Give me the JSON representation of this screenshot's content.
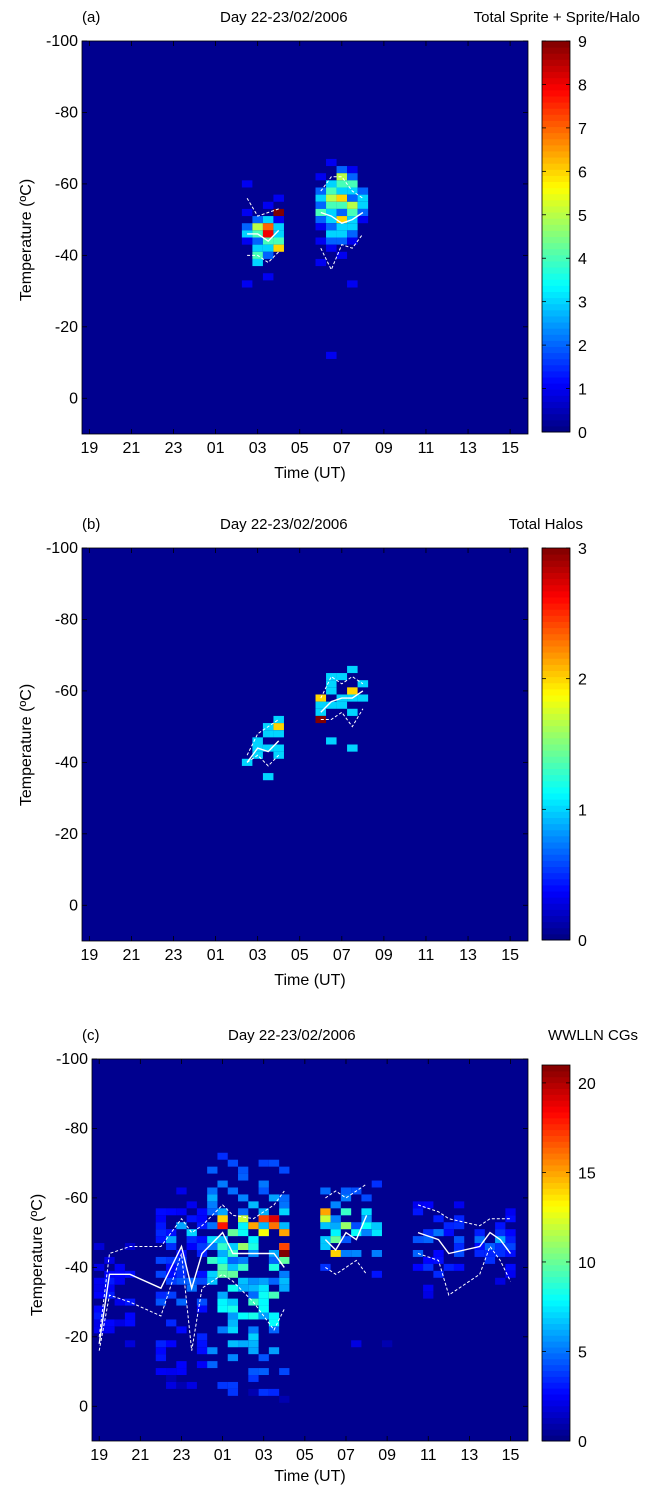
{
  "colors": {
    "background_bin": "#00008f",
    "overlay_lines": "#ffffff",
    "colormap": "jet"
  },
  "chart_data": [
    {
      "type": "heatmap",
      "panel_label": "(a)",
      "title": "Day 22-23/02/2006",
      "title_right": "Total Sprite + Sprite/Halo",
      "xlabel": "Time (UT)",
      "ylabel": "Temperature (ºC)",
      "xlim": [
        18.6,
        15.8
      ],
      "xlim_note_hours": [
        18.6,
        39.8
      ],
      "ylim": [
        -100,
        10
      ],
      "y_reversed": true,
      "x_ticks": [
        "19",
        "21",
        "23",
        "01",
        "03",
        "05",
        "07",
        "09",
        "11",
        "13",
        "15"
      ],
      "y_ticks": [
        "-100",
        "-80",
        "-60",
        "-40",
        "-20",
        "0"
      ],
      "colorbar": {
        "min": 0,
        "max": 9,
        "ticks": [
          "0",
          "1",
          "2",
          "3",
          "4",
          "5",
          "6",
          "7",
          "8",
          "9"
        ]
      },
      "background_value": 0,
      "cells": [
        [
          26.5,
          -60,
          1
        ],
        [
          26.5,
          -52,
          1
        ],
        [
          26.5,
          -48,
          2
        ],
        [
          26.5,
          -46,
          3
        ],
        [
          26.5,
          -44,
          1
        ],
        [
          26.5,
          -32,
          1
        ],
        [
          27.0,
          -50,
          2
        ],
        [
          27.0,
          -48,
          5
        ],
        [
          27.0,
          -46,
          4
        ],
        [
          27.0,
          -44,
          2
        ],
        [
          27.0,
          -42,
          3
        ],
        [
          27.0,
          -40,
          4
        ],
        [
          27.0,
          -38,
          3
        ],
        [
          27.5,
          -54,
          1
        ],
        [
          27.5,
          -50,
          3
        ],
        [
          27.5,
          -48,
          7
        ],
        [
          27.5,
          -46,
          8
        ],
        [
          27.5,
          -44,
          4
        ],
        [
          27.5,
          -42,
          3
        ],
        [
          27.5,
          -40,
          2
        ],
        [
          27.5,
          -34,
          1
        ],
        [
          28.0,
          -56,
          1
        ],
        [
          28.0,
          -52,
          9
        ],
        [
          28.0,
          -50,
          1
        ],
        [
          28.0,
          -48,
          3
        ],
        [
          28.0,
          -46,
          3
        ],
        [
          28.0,
          -44,
          4
        ],
        [
          28.0,
          -42,
          6
        ],
        [
          30.0,
          -62,
          1
        ],
        [
          30.0,
          -58,
          2
        ],
        [
          30.0,
          -56,
          3
        ],
        [
          30.0,
          -54,
          2
        ],
        [
          30.0,
          -52,
          4
        ],
        [
          30.0,
          -50,
          2
        ],
        [
          30.0,
          -48,
          1
        ],
        [
          30.0,
          -44,
          1
        ],
        [
          30.0,
          -38,
          1
        ],
        [
          30.5,
          -66,
          1
        ],
        [
          30.5,
          -60,
          3
        ],
        [
          30.5,
          -58,
          4
        ],
        [
          30.5,
          -56,
          5
        ],
        [
          30.5,
          -54,
          4
        ],
        [
          30.5,
          -52,
          3
        ],
        [
          30.5,
          -50,
          3
        ],
        [
          30.5,
          -48,
          2
        ],
        [
          30.5,
          -46,
          3
        ],
        [
          30.5,
          -44,
          2
        ],
        [
          30.5,
          -42,
          1
        ],
        [
          30.5,
          -12,
          1
        ],
        [
          31.0,
          -64,
          2
        ],
        [
          31.0,
          -62,
          5
        ],
        [
          31.0,
          -60,
          4
        ],
        [
          31.0,
          -58,
          3
        ],
        [
          31.0,
          -56,
          6
        ],
        [
          31.0,
          -54,
          4
        ],
        [
          31.0,
          -52,
          2
        ],
        [
          31.0,
          -50,
          6
        ],
        [
          31.0,
          -48,
          3
        ],
        [
          31.0,
          -46,
          3
        ],
        [
          31.0,
          -44,
          2
        ],
        [
          31.0,
          -40,
          1
        ],
        [
          31.5,
          -64,
          1
        ],
        [
          31.5,
          -62,
          2
        ],
        [
          31.5,
          -60,
          4
        ],
        [
          31.5,
          -58,
          3
        ],
        [
          31.5,
          -56,
          2
        ],
        [
          31.5,
          -54,
          5
        ],
        [
          31.5,
          -52,
          4
        ],
        [
          31.5,
          -50,
          3
        ],
        [
          31.5,
          -48,
          3
        ],
        [
          31.5,
          -46,
          2
        ],
        [
          31.5,
          -44,
          1
        ],
        [
          31.5,
          -32,
          1
        ],
        [
          32.0,
          -58,
          2
        ],
        [
          32.0,
          -56,
          3
        ],
        [
          32.0,
          -54,
          3
        ],
        [
          32.0,
          -52,
          2
        ],
        [
          32.0,
          -50,
          1
        ]
      ],
      "overlay_median": [
        [
          26.5,
          -46
        ],
        [
          27.0,
          -46
        ],
        [
          27.5,
          -44
        ],
        [
          28.0,
          -47
        ],
        [
          30.0,
          -52
        ],
        [
          30.5,
          -51
        ],
        [
          31.0,
          -49
        ],
        [
          31.5,
          -50
        ],
        [
          32.0,
          -52
        ]
      ],
      "overlay_upper": [
        [
          26.5,
          -56
        ],
        [
          27.0,
          -51
        ],
        [
          27.5,
          -52
        ],
        [
          28.0,
          -53
        ],
        [
          30.0,
          -58
        ],
        [
          30.5,
          -62
        ],
        [
          31.0,
          -62
        ],
        [
          31.5,
          -58
        ],
        [
          32.0,
          -56
        ]
      ],
      "overlay_lower": [
        [
          26.5,
          -40
        ],
        [
          27.0,
          -40
        ],
        [
          27.5,
          -38
        ],
        [
          28.0,
          -41
        ],
        [
          30.0,
          -42
        ],
        [
          30.5,
          -36
        ],
        [
          31.0,
          -43
        ],
        [
          31.5,
          -42
        ],
        [
          32.0,
          -46
        ]
      ]
    },
    {
      "type": "heatmap",
      "panel_label": "(b)",
      "title": "Day 22-23/02/2006",
      "title_right": "Total Halos",
      "xlabel": "Time (UT)",
      "ylabel": "Temperature (ºC)",
      "ylim": [
        -100,
        10
      ],
      "y_reversed": true,
      "x_ticks": [
        "19",
        "21",
        "23",
        "01",
        "03",
        "05",
        "07",
        "09",
        "11",
        "13",
        "15"
      ],
      "y_ticks": [
        "-100",
        "-80",
        "-60",
        "-40",
        "-20",
        "0"
      ],
      "colorbar": {
        "min": 0,
        "max": 3,
        "ticks": [
          "0",
          "1",
          "2",
          "3"
        ]
      },
      "background_value": 0,
      "cells": [
        [
          26.5,
          -40,
          1
        ],
        [
          27.0,
          -46,
          1
        ],
        [
          27.0,
          -44,
          1
        ],
        [
          27.0,
          -42,
          1
        ],
        [
          27.5,
          -50,
          1
        ],
        [
          27.5,
          -48,
          1
        ],
        [
          27.5,
          -44,
          1
        ],
        [
          27.5,
          -36,
          1
        ],
        [
          28.0,
          -50,
          2
        ],
        [
          28.0,
          -48,
          1
        ],
        [
          28.0,
          -44,
          1
        ],
        [
          28.0,
          -42,
          1
        ],
        [
          28.0,
          -52,
          1
        ],
        [
          30.0,
          -58,
          2
        ],
        [
          30.0,
          -56,
          1
        ],
        [
          30.0,
          -54,
          1
        ],
        [
          30.0,
          -52,
          3
        ],
        [
          30.5,
          -64,
          1
        ],
        [
          30.5,
          -62,
          1
        ],
        [
          30.5,
          -60,
          1
        ],
        [
          30.5,
          -56,
          1
        ],
        [
          30.5,
          -46,
          1
        ],
        [
          31.0,
          -64,
          1
        ],
        [
          31.0,
          -58,
          1
        ],
        [
          31.0,
          -56,
          1
        ],
        [
          31.5,
          -66,
          1
        ],
        [
          31.5,
          -60,
          2
        ],
        [
          31.5,
          -58,
          1
        ],
        [
          31.5,
          -54,
          1
        ],
        [
          31.5,
          -44,
          1
        ],
        [
          32.0,
          -62,
          1
        ],
        [
          32.0,
          -58,
          1
        ]
      ],
      "overlay_median": [
        [
          26.5,
          -40
        ],
        [
          27.0,
          -44
        ],
        [
          27.5,
          -43
        ],
        [
          28.0,
          -46
        ],
        [
          30.0,
          -54
        ],
        [
          30.5,
          -57
        ],
        [
          31.0,
          -58
        ],
        [
          31.5,
          -58
        ],
        [
          32.0,
          -60
        ]
      ],
      "overlay_upper": [
        [
          26.5,
          -42
        ],
        [
          27.0,
          -48
        ],
        [
          27.5,
          -50
        ],
        [
          28.0,
          -52
        ],
        [
          30.0,
          -58
        ],
        [
          30.5,
          -64
        ],
        [
          31.0,
          -62
        ],
        [
          31.5,
          -64
        ],
        [
          32.0,
          -62
        ]
      ],
      "overlay_lower": [
        [
          26.5,
          -40
        ],
        [
          27.0,
          -42
        ],
        [
          27.5,
          -39
        ],
        [
          28.0,
          -42
        ],
        [
          30.0,
          -52
        ],
        [
          30.5,
          -52
        ],
        [
          31.0,
          -54
        ],
        [
          31.5,
          -50
        ],
        [
          32.0,
          -55
        ]
      ]
    },
    {
      "type": "heatmap",
      "panel_label": "(c)",
      "title": "Day 22-23/02/2006",
      "title_right": "WWLLN CGs",
      "xlabel": "Time (UT)",
      "ylabel": "Temperature (ºC)",
      "ylim": [
        -100,
        10
      ],
      "y_reversed": true,
      "x_ticks": [
        "19",
        "21",
        "23",
        "01",
        "03",
        "05",
        "07",
        "09",
        "11",
        "13",
        "15"
      ],
      "y_ticks": [
        "-100",
        "-80",
        "-60",
        "-40",
        "-20",
        "0"
      ],
      "colorbar": {
        "min": 0,
        "max": 21,
        "ticks": [
          "0",
          "5",
          "10",
          "15",
          "20"
        ]
      },
      "background_value": 0,
      "clusters": [
        {
          "t0": 19.0,
          "t1": 20.5,
          "y_top": -46,
          "y_bot": -16,
          "intensity": 2
        },
        {
          "t0": 22.0,
          "t1": 24.0,
          "y_top": -62,
          "y_bot": -6,
          "intensity": 3
        },
        {
          "t0": 24.5,
          "t1": 28.0,
          "y_top": -72,
          "y_bot": -4,
          "intensity": 7
        },
        {
          "t0": 30.0,
          "t1": 32.5,
          "y_top": -66,
          "y_bot": -38,
          "intensity": 6
        },
        {
          "t0": 34.5,
          "t1": 36.5,
          "y_top": -60,
          "y_bot": -32,
          "intensity": 3
        },
        {
          "t0": 37.5,
          "t1": 39.0,
          "y_top": -58,
          "y_bot": -36,
          "intensity": 3
        }
      ],
      "hot_cells": [
        [
          25.0,
          -52,
          18
        ],
        [
          25.0,
          -54,
          14
        ],
        [
          25.5,
          -50,
          10
        ],
        [
          26.0,
          -54,
          12
        ],
        [
          26.5,
          -52,
          15
        ],
        [
          27.0,
          -54,
          17
        ],
        [
          27.0,
          -50,
          13
        ],
        [
          27.5,
          -54,
          19
        ],
        [
          27.5,
          -52,
          16
        ],
        [
          28.0,
          -50,
          15
        ],
        [
          28.0,
          -46,
          17
        ],
        [
          28.0,
          -44,
          21
        ],
        [
          26.0,
          -46,
          11
        ],
        [
          25.5,
          -44,
          9
        ],
        [
          30.0,
          -56,
          15
        ],
        [
          30.0,
          -54,
          12
        ],
        [
          30.5,
          -48,
          10
        ],
        [
          30.5,
          -44,
          14
        ],
        [
          31.0,
          -52,
          11
        ],
        [
          31.0,
          -56,
          9
        ],
        [
          23.5,
          -50,
          7
        ],
        [
          23.0,
          -52,
          6
        ],
        [
          22.5,
          -48,
          6
        ],
        [
          38.5,
          -48,
          6
        ],
        [
          35.5,
          -50,
          5
        ]
      ],
      "outlier_cells": [
        [
          31.5,
          -18,
          2
        ],
        [
          33.0,
          -18,
          1
        ],
        [
          22.5,
          -8,
          1
        ],
        [
          23.0,
          -6,
          1
        ],
        [
          26.5,
          -4,
          1
        ],
        [
          28.0,
          -2,
          1
        ]
      ],
      "overlay_median": [
        [
          19.0,
          -18
        ],
        [
          19.5,
          -38
        ],
        [
          20.5,
          -38
        ],
        [
          22.0,
          -34
        ],
        [
          23.0,
          -46
        ],
        [
          23.5,
          -34
        ],
        [
          24.0,
          -44
        ],
        [
          25.0,
          -50
        ],
        [
          25.5,
          -44
        ],
        [
          26.5,
          -44
        ],
        [
          27.5,
          -44
        ],
        [
          28.0,
          -40
        ],
        [
          30.0,
          -48
        ],
        [
          30.5,
          -45
        ],
        [
          31.0,
          -50
        ],
        [
          31.5,
          -48
        ],
        [
          32.0,
          -55
        ],
        [
          34.5,
          -50
        ],
        [
          35.5,
          -48
        ],
        [
          36.0,
          -44
        ],
        [
          37.5,
          -46
        ],
        [
          38.0,
          -50
        ],
        [
          38.5,
          -48
        ],
        [
          39.0,
          -44
        ]
      ],
      "overlay_upper": [
        [
          19.0,
          -20
        ],
        [
          19.5,
          -44
        ],
        [
          20.5,
          -46
        ],
        [
          22.0,
          -46
        ],
        [
          23.0,
          -54
        ],
        [
          23.5,
          -50
        ],
        [
          24.0,
          -52
        ],
        [
          25.0,
          -58
        ],
        [
          25.5,
          -55
        ],
        [
          26.5,
          -54
        ],
        [
          27.5,
          -58
        ],
        [
          28.0,
          -62
        ],
        [
          30.0,
          -60
        ],
        [
          30.5,
          -62
        ],
        [
          31.0,
          -60
        ],
        [
          31.5,
          -62
        ],
        [
          32.0,
          -64
        ],
        [
          34.5,
          -58
        ],
        [
          35.5,
          -56
        ],
        [
          36.0,
          -54
        ],
        [
          37.5,
          -52
        ],
        [
          38.0,
          -54
        ],
        [
          38.5,
          -54
        ],
        [
          39.0,
          -54
        ]
      ],
      "overlay_lower": [
        [
          19.0,
          -16
        ],
        [
          19.5,
          -32
        ],
        [
          20.5,
          -30
        ],
        [
          22.0,
          -26
        ],
        [
          23.0,
          -44
        ],
        [
          23.5,
          -16
        ],
        [
          24.0,
          -34
        ],
        [
          25.0,
          -38
        ],
        [
          25.5,
          -36
        ],
        [
          26.5,
          -30
        ],
        [
          27.5,
          -22
        ],
        [
          28.0,
          -28
        ],
        [
          30.0,
          -40
        ],
        [
          30.5,
          -38
        ],
        [
          31.0,
          -40
        ],
        [
          31.5,
          -42
        ],
        [
          32.0,
          -38
        ],
        [
          34.5,
          -44
        ],
        [
          35.5,
          -42
        ],
        [
          36.0,
          -32
        ],
        [
          37.5,
          -38
        ],
        [
          38.0,
          -46
        ],
        [
          38.5,
          -42
        ],
        [
          39.0,
          -36
        ]
      ]
    }
  ]
}
